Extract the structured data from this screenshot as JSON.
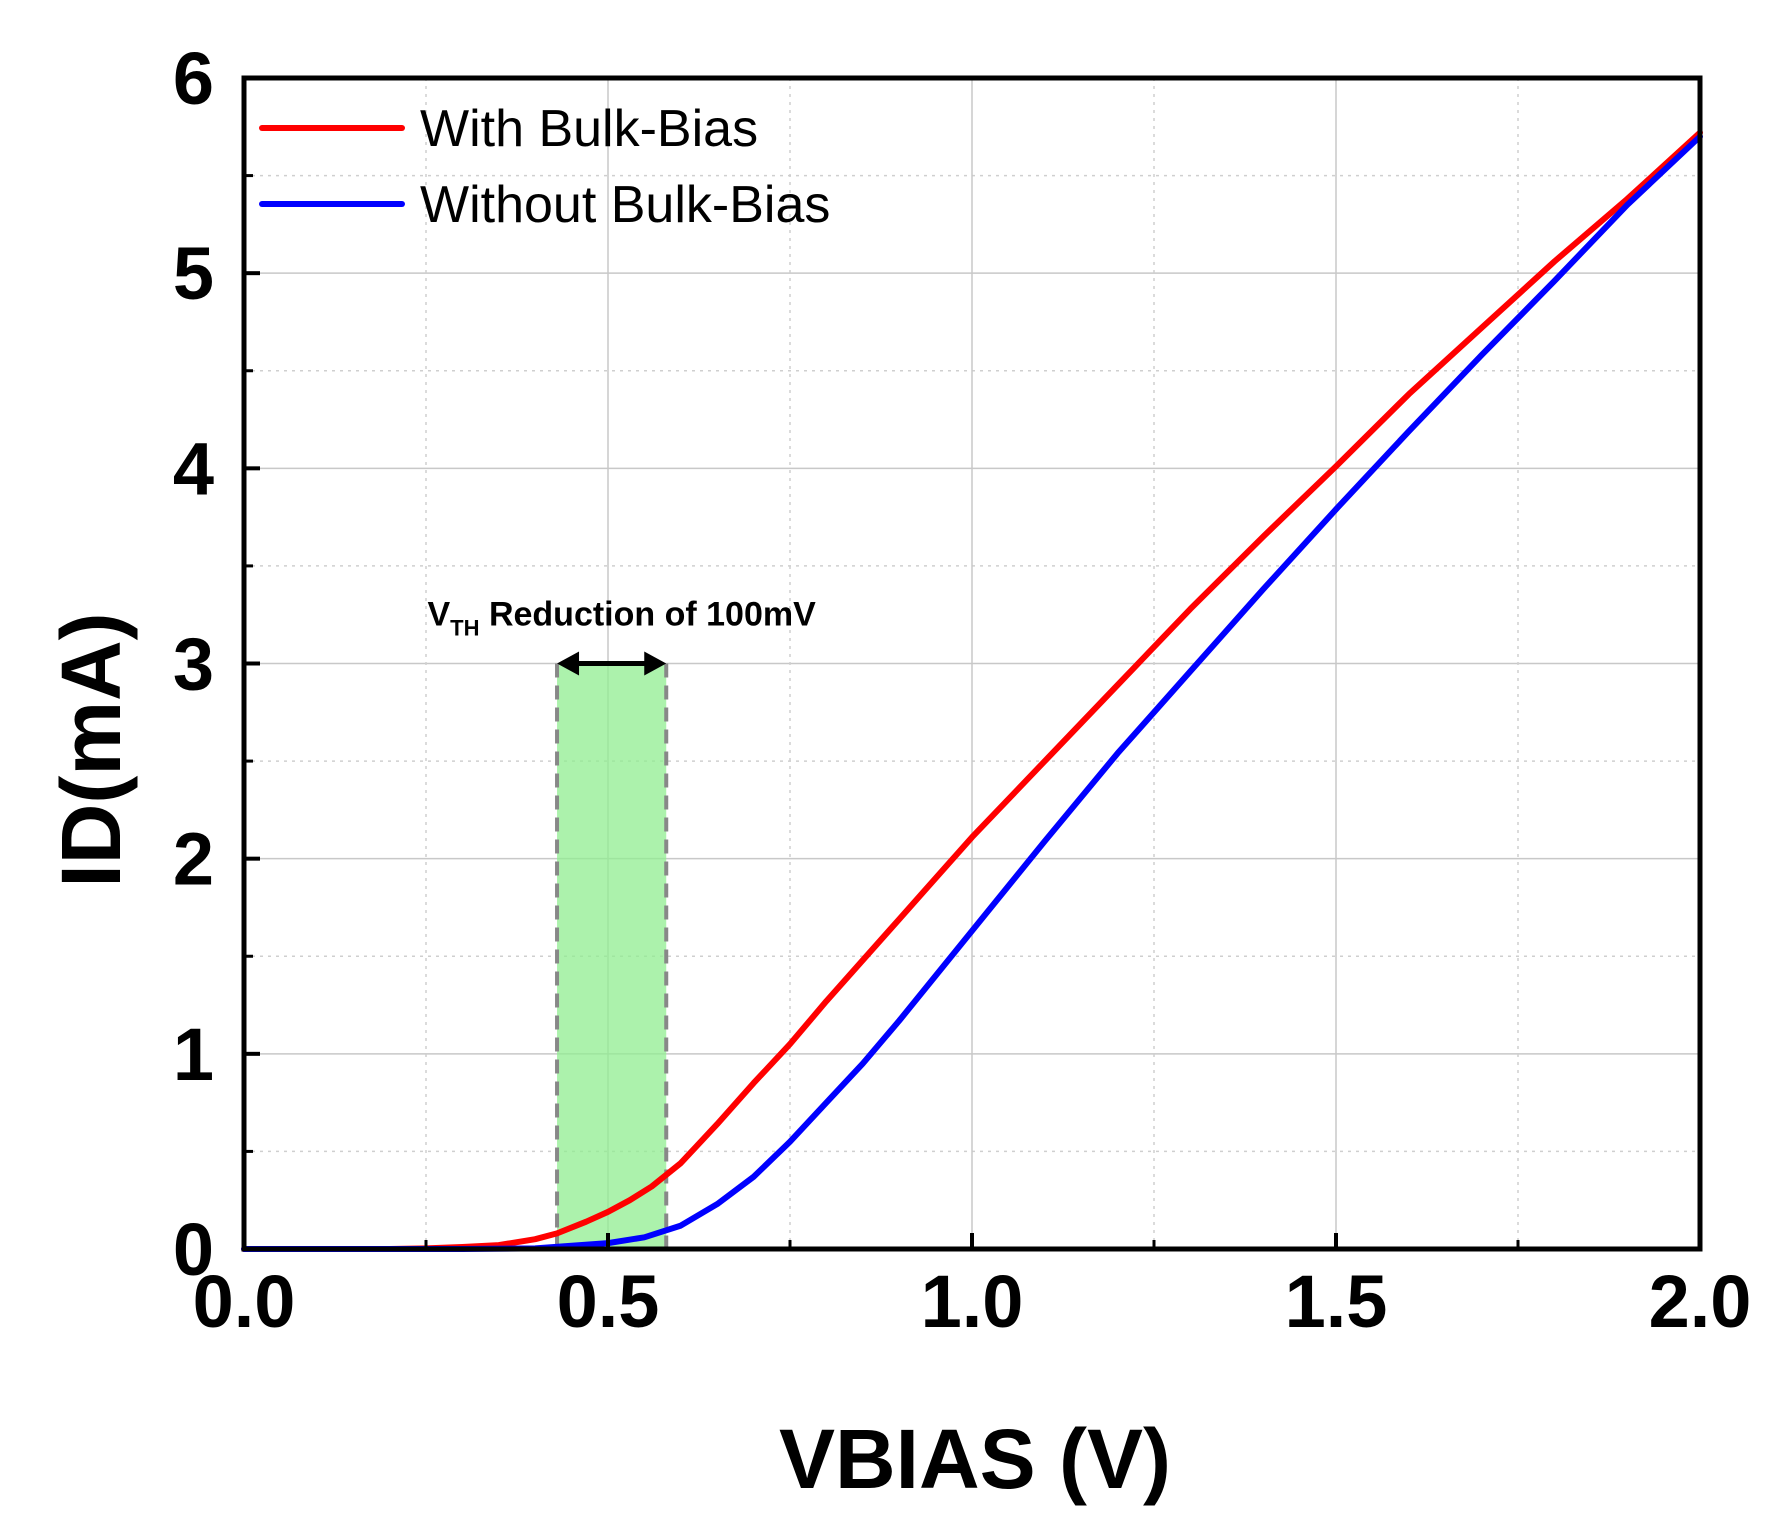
{
  "chart_data": {
    "type": "line",
    "title": "",
    "xlabel": "VBIAS (V)",
    "ylabel": "ID(mA)",
    "xlim": [
      0,
      2.0
    ],
    "ylim": [
      0,
      6
    ],
    "xticks": [
      0.0,
      0.5,
      1.0,
      1.5,
      2.0
    ],
    "xtick_labels": [
      "0.0",
      "0.5",
      "1.0",
      "1.5",
      "2.0"
    ],
    "yticks": [
      0,
      1,
      2,
      3,
      4,
      5,
      6
    ],
    "ytick_labels": [
      "0",
      "1",
      "2",
      "3",
      "4",
      "5",
      "6"
    ],
    "grid": true,
    "legend_position": "top-left",
    "series": [
      {
        "name": "With Bulk-Bias",
        "color": "#ff0000",
        "x": [
          0.0,
          0.2,
          0.25,
          0.3,
          0.35,
          0.4,
          0.43,
          0.47,
          0.5,
          0.53,
          0.56,
          0.6,
          0.65,
          0.7,
          0.75,
          0.8,
          0.9,
          1.0,
          1.1,
          1.2,
          1.3,
          1.4,
          1.5,
          1.6,
          1.7,
          1.8,
          1.9,
          2.0
        ],
        "values": [
          0.0,
          0.0,
          0.003,
          0.01,
          0.02,
          0.05,
          0.08,
          0.14,
          0.19,
          0.25,
          0.32,
          0.44,
          0.64,
          0.85,
          1.05,
          1.27,
          1.69,
          2.11,
          2.5,
          2.89,
          3.28,
          3.65,
          4.01,
          4.38,
          4.72,
          5.06,
          5.38,
          5.72
        ]
      },
      {
        "name": "Without Bulk-Bias",
        "color": "#0000ff",
        "x": [
          0.0,
          0.3,
          0.4,
          0.5,
          0.55,
          0.6,
          0.65,
          0.7,
          0.75,
          0.8,
          0.85,
          0.9,
          1.0,
          1.1,
          1.2,
          1.3,
          1.4,
          1.5,
          1.6,
          1.7,
          1.8,
          1.9,
          2.0
        ],
        "values": [
          0.0,
          0.0,
          0.003,
          0.03,
          0.06,
          0.12,
          0.23,
          0.37,
          0.55,
          0.75,
          0.95,
          1.17,
          1.63,
          2.09,
          2.54,
          2.96,
          3.38,
          3.79,
          4.19,
          4.58,
          4.96,
          5.35,
          5.7
        ]
      }
    ],
    "annotations": [
      {
        "text_main": "V",
        "text_sub": "TH",
        "text_rest": " Reduction of 100mV",
        "x_range": [
          0.43,
          0.58
        ],
        "y_top": 3.0,
        "highlight_color": "#90ee90"
      }
    ]
  }
}
